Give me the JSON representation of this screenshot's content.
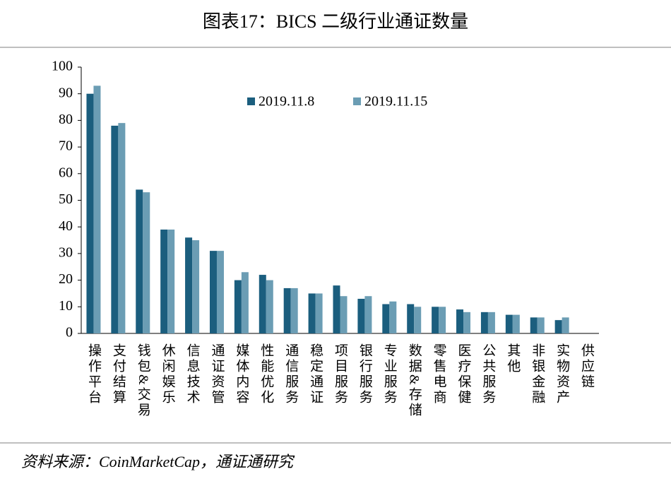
{
  "chart_data": {
    "type": "bar",
    "title": "图表17：BICS 二级行业通证数量",
    "source": "资料来源：CoinMarketCap，通证通研究",
    "categories": [
      "操作平台",
      "支付结算",
      "钱包&交易",
      "休闲娱乐",
      "信息技术",
      "通证资管",
      "媒体内容",
      "性能优化",
      "通信服务",
      "稳定通证",
      "项目服务",
      "银行服务",
      "专业服务",
      "数据&存储",
      "零售电商",
      "医疗保健",
      "公共服务",
      "其他",
      "非银金融",
      "实物资产",
      "供应链"
    ],
    "series": [
      {
        "name": "2019.11.8",
        "color": "#1b5e7e",
        "values": [
          90,
          78,
          54,
          39,
          36,
          31,
          20,
          22,
          17,
          15,
          18,
          13,
          11,
          11,
          10,
          9,
          8,
          7,
          6,
          5,
          0
        ]
      },
      {
        "name": "2019.11.15",
        "color": "#6b9db4",
        "values": [
          93,
          79,
          53,
          39,
          35,
          31,
          23,
          20,
          17,
          15,
          14,
          14,
          12,
          10,
          10,
          8,
          8,
          7,
          6,
          6,
          0
        ]
      }
    ],
    "ylim": [
      0,
      100
    ],
    "yticks": [
      0,
      10,
      20,
      30,
      40,
      50,
      60,
      70,
      80,
      90,
      100
    ]
  }
}
